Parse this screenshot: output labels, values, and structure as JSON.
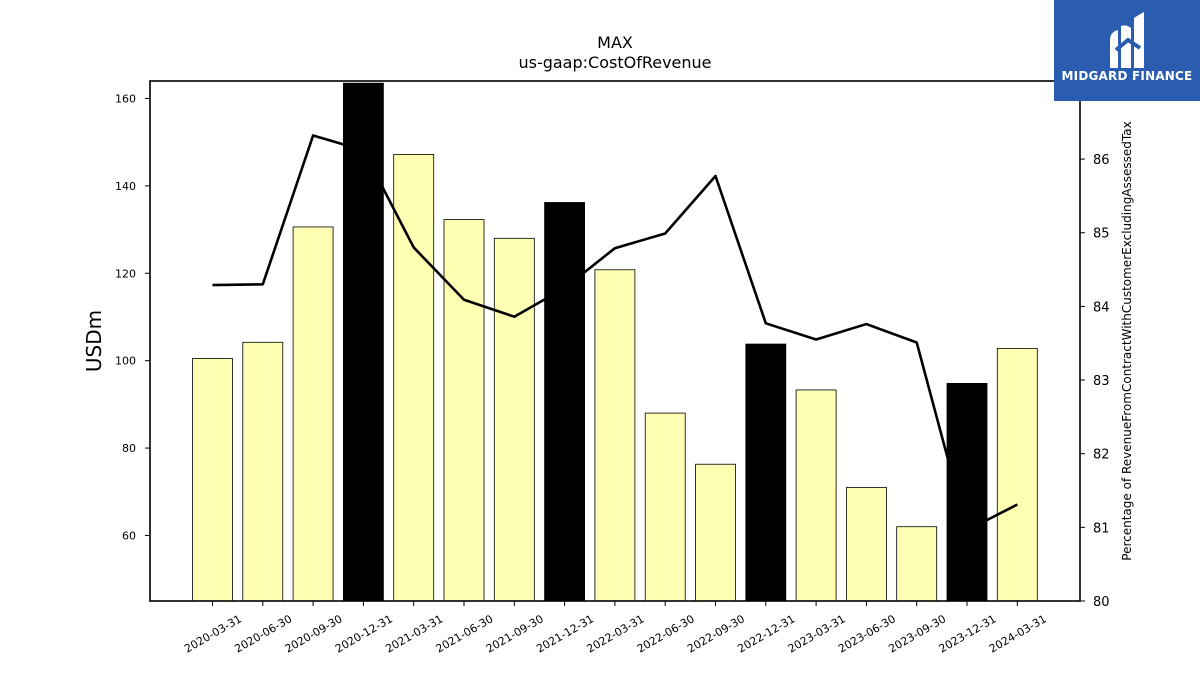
{
  "chart_data": {
    "type": "bar+line",
    "title": "MAX",
    "subtitle": "us-gaap:CostOfRevenue",
    "ylabel": "USDm",
    "y2label": "Percentage of RevenueFromContractWithCustomerExcludingAssessedTax",
    "categories": [
      "2020-03-31",
      "2020-06-30",
      "2020-09-30",
      "2020-12-31",
      "2021-03-31",
      "2021-06-30",
      "2021-09-30",
      "2021-12-31",
      "2022-03-31",
      "2022-06-30",
      "2022-09-30",
      "2022-12-31",
      "2023-03-31",
      "2023-06-30",
      "2023-09-30",
      "2023-12-31",
      "2024-03-31"
    ],
    "bars": {
      "values": [
        100.5,
        104.2,
        130.6,
        163.5,
        147.2,
        132.3,
        128.0,
        136.2,
        120.8,
        88.0,
        76.3,
        103.8,
        93.3,
        71.0,
        62.0,
        94.8,
        102.8
      ],
      "highlight": [
        false,
        false,
        false,
        true,
        false,
        false,
        false,
        true,
        false,
        false,
        false,
        true,
        false,
        false,
        false,
        true,
        false
      ],
      "color": "#ffffb3",
      "highlight_color": "#000000"
    },
    "line": {
      "values": [
        84.29,
        84.3,
        86.32,
        86.12,
        84.8,
        84.09,
        83.86,
        84.25,
        84.79,
        84.99,
        85.77,
        83.77,
        83.55,
        83.76,
        83.51,
        80.96,
        81.31
      ],
      "color": "#000000"
    },
    "ylim": [
      45,
      164
    ],
    "yticks": [
      60,
      80,
      100,
      120,
      140,
      160
    ],
    "y2lim": [
      80,
      87.06
    ],
    "y2ticks": [
      80,
      81,
      82,
      83,
      84,
      85,
      86
    ],
    "grid": false
  },
  "logo": {
    "text": "MIDGARD FINANCE",
    "icon": "midgard-logo-icon",
    "color": "#2a5db0"
  }
}
